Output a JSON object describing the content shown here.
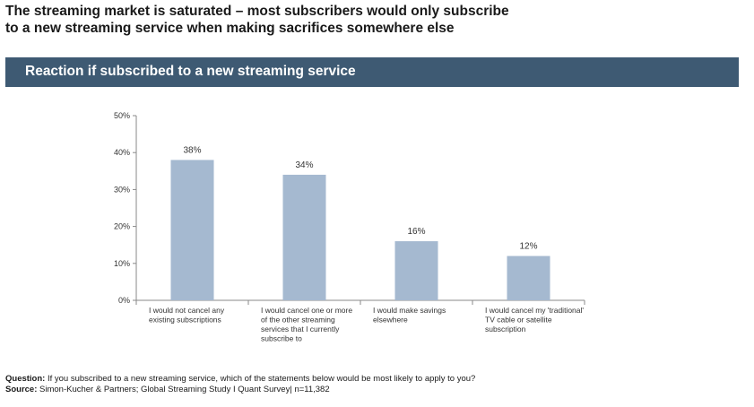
{
  "headline": {
    "line1": "The streaming market is saturated – most subscribers would only subscribe",
    "line2": "to a new streaming service when making sacrifices somewhere else"
  },
  "banner": {
    "title": "Reaction if subscribed to a new streaming service"
  },
  "chart_data": {
    "type": "bar",
    "title": "Reaction if subscribed to a new streaming service",
    "categories": [
      [
        "I would not cancel any",
        "existing subscriptions"
      ],
      [
        "I would cancel one or more",
        "of the other streaming",
        "services that I currently",
        "subscribe to"
      ],
      [
        "I would make savings",
        "elsewhere"
      ],
      [
        "I would cancel my 'traditional'",
        "TV cable or satellite",
        "subscription"
      ]
    ],
    "values": [
      38,
      34,
      16,
      12
    ],
    "data_labels": [
      "38%",
      "34%",
      "16%",
      "12%"
    ],
    "ylim": [
      0,
      50
    ],
    "yticks": [
      "0%",
      "10%",
      "20%",
      "30%",
      "40%",
      "50%"
    ],
    "bar_color": "#a5b9d0",
    "grid": false
  },
  "footer": {
    "question_label": "Question:",
    "question_text": " If you subscribed to a new streaming service, which of the statements below would be most likely to apply to you?",
    "source_label": "Source:",
    "source_text": " Simon-Kucher & Partners; Global Streaming Study I Quant Survey| n=11,382"
  }
}
